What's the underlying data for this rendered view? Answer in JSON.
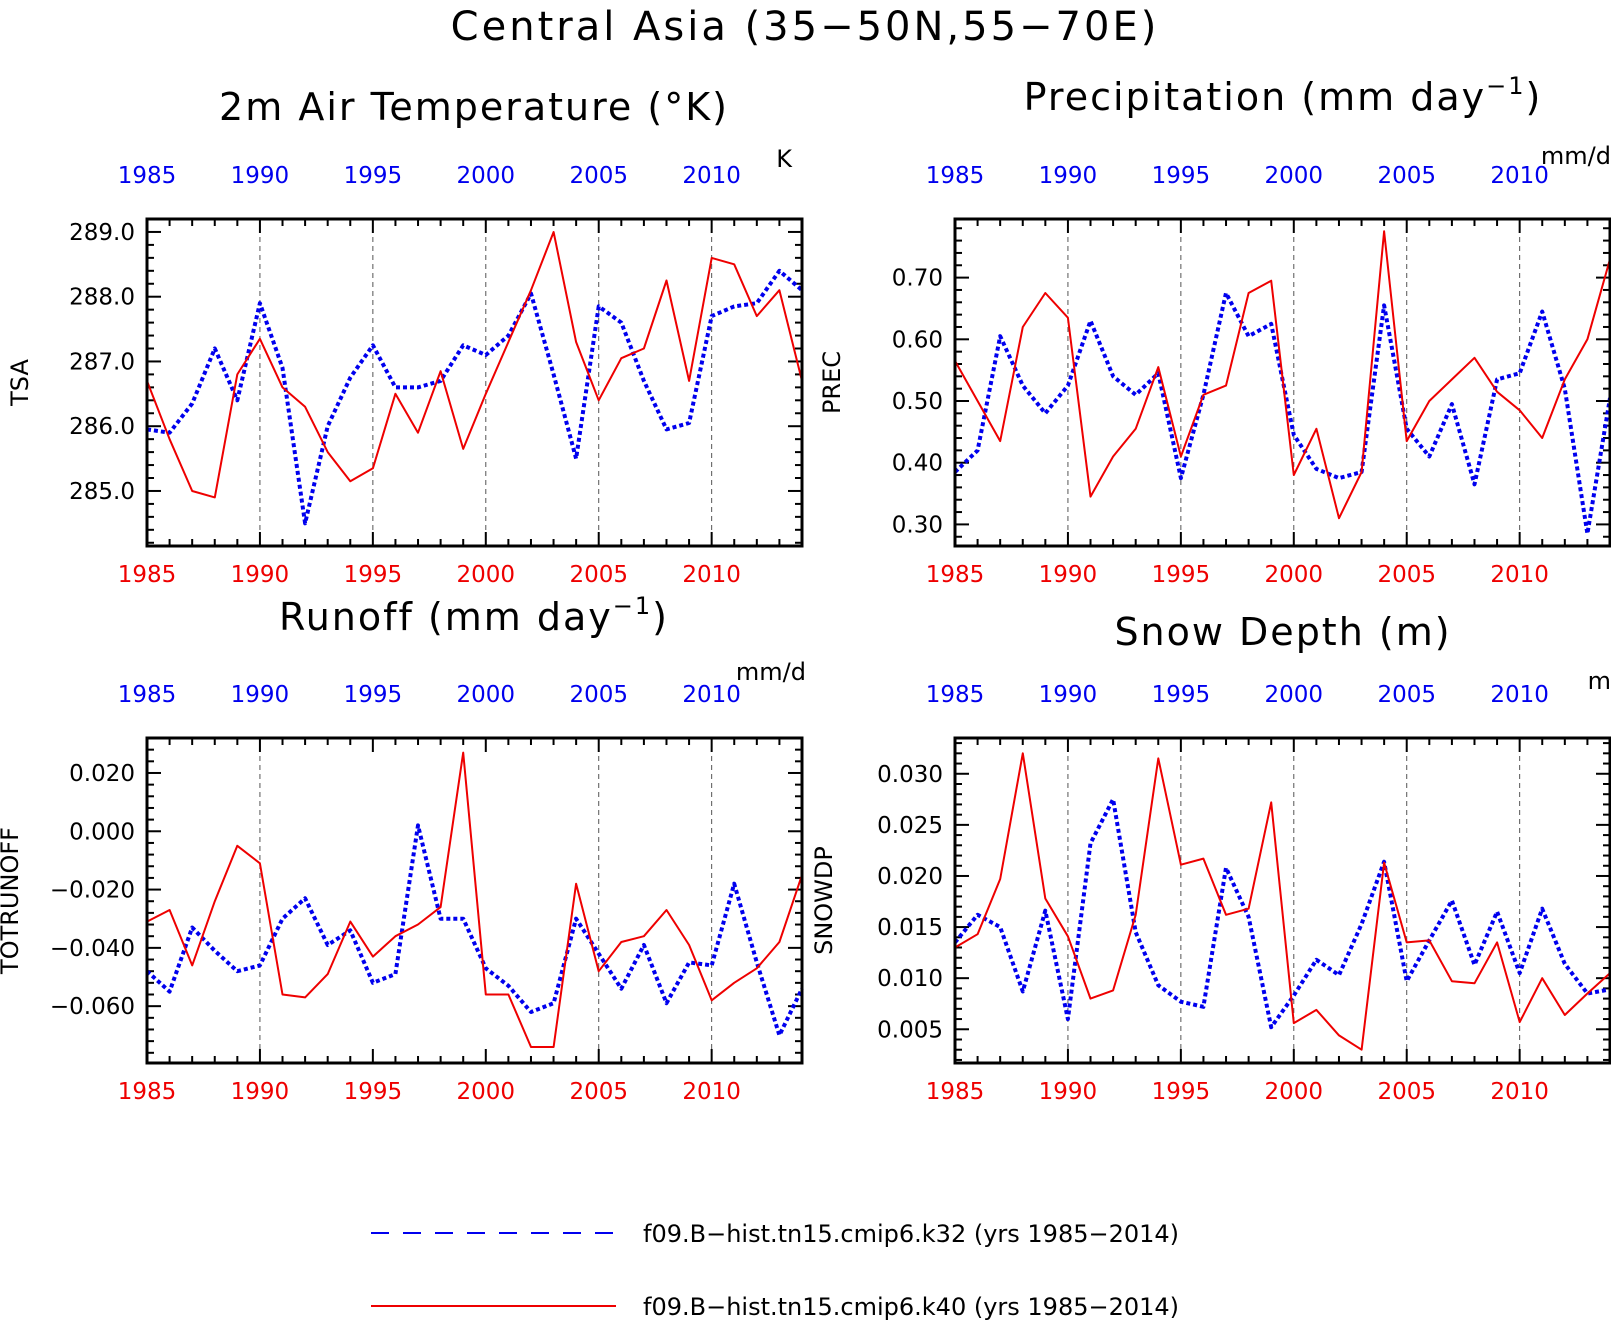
{
  "page_title": "Central Asia (35−50N,55−70E)",
  "colors": {
    "blue": "#0000ee",
    "red": "#ee0000",
    "black": "#000000",
    "grid": "#555555"
  },
  "legend": {
    "items": [
      {
        "label": "f09.B−hist.tn15.cmip6.k32 (yrs 1985−2014)",
        "color": "#0000ee",
        "style": "dashed"
      },
      {
        "label": "f09.B−hist.tn15.cmip6.k40 (yrs 1985−2014)",
        "color": "#ee0000",
        "style": "solid"
      }
    ]
  },
  "chart_data": [
    {
      "type": "line",
      "title": "2m Air Temperature (°K)",
      "ylabel": "TSA",
      "units": "K",
      "xlim": [
        1985,
        2014
      ],
      "ylim": [
        284.15,
        289.2
      ],
      "yticks": [
        285.0,
        286.0,
        287.0,
        288.0,
        289.0
      ],
      "yticklabels": [
        "285.0",
        "286.0",
        "287.0",
        "288.0",
        "289.0"
      ],
      "xticks": [
        1985,
        1990,
        1995,
        2000,
        2005,
        2010
      ],
      "grid_x": [
        1990,
        1995,
        2000,
        2005,
        2010
      ],
      "x": [
        1985,
        1986,
        1987,
        1988,
        1989,
        1990,
        1991,
        1992,
        1993,
        1994,
        1995,
        1996,
        1997,
        1998,
        1999,
        2000,
        2001,
        2002,
        2003,
        2004,
        2005,
        2006,
        2007,
        2008,
        2009,
        2010,
        2011,
        2012,
        2013,
        2014
      ],
      "series": [
        {
          "color": "#0000ee",
          "style": "dashed",
          "values": [
            285.95,
            285.9,
            286.35,
            287.2,
            286.4,
            287.9,
            286.9,
            284.5,
            286.0,
            286.75,
            287.25,
            286.6,
            286.6,
            286.7,
            287.25,
            287.1,
            287.4,
            288.05,
            286.8,
            285.5,
            287.85,
            287.6,
            286.7,
            285.95,
            286.05,
            287.7,
            287.85,
            287.9,
            288.4,
            288.1
          ]
        },
        {
          "color": "#ee0000",
          "style": "solid",
          "values": [
            286.7,
            285.8,
            285.0,
            284.9,
            286.8,
            287.35,
            286.6,
            286.3,
            285.6,
            285.15,
            285.35,
            286.5,
            285.9,
            286.85,
            285.65,
            286.5,
            287.3,
            288.1,
            289.0,
            287.3,
            286.4,
            287.05,
            287.2,
            288.25,
            286.7,
            288.6,
            288.5,
            287.7,
            288.1,
            286.7
          ]
        }
      ]
    },
    {
      "type": "line",
      "title": "Precipitation (mm day",
      "title_sup": "−1",
      "title_end": ")",
      "ylabel": "PREC",
      "units": "mm/d",
      "xlim": [
        1985,
        2014
      ],
      "ylim": [
        0.265,
        0.795
      ],
      "yticks": [
        0.3,
        0.4,
        0.5,
        0.6,
        0.7
      ],
      "yticklabels": [
        "0.30",
        "0.40",
        "0.50",
        "0.60",
        "0.70"
      ],
      "xticks": [
        1985,
        1990,
        1995,
        2000,
        2005,
        2010
      ],
      "grid_x": [
        1990,
        1995,
        2000,
        2005,
        2010
      ],
      "x": [
        1985,
        1986,
        1987,
        1988,
        1989,
        1990,
        1991,
        1992,
        1993,
        1994,
        1995,
        1996,
        1997,
        1998,
        1999,
        2000,
        2001,
        2002,
        2003,
        2004,
        2005,
        2006,
        2007,
        2008,
        2009,
        2010,
        2011,
        2012,
        2013,
        2014
      ],
      "series": [
        {
          "color": "#0000ee",
          "style": "dashed",
          "values": [
            0.385,
            0.42,
            0.605,
            0.525,
            0.48,
            0.525,
            0.63,
            0.54,
            0.51,
            0.545,
            0.375,
            0.51,
            0.675,
            0.605,
            0.625,
            0.445,
            0.39,
            0.375,
            0.385,
            0.655,
            0.455,
            0.41,
            0.495,
            0.365,
            0.535,
            0.545,
            0.645,
            0.52,
            0.285,
            0.505
          ]
        },
        {
          "color": "#ee0000",
          "style": "solid",
          "values": [
            0.565,
            0.5,
            0.435,
            0.62,
            0.675,
            0.635,
            0.345,
            0.41,
            0.455,
            0.555,
            0.41,
            0.51,
            0.525,
            0.675,
            0.695,
            0.38,
            0.455,
            0.31,
            0.385,
            0.775,
            0.435,
            0.5,
            0.535,
            0.57,
            0.515,
            0.485,
            0.44,
            0.535,
            0.6,
            0.73
          ]
        }
      ]
    },
    {
      "type": "line",
      "title": "Runoff (mm day",
      "title_sup": "−1",
      "title_end": ")",
      "ylabel": "TOTRUNOFF",
      "units": "mm/d",
      "xlim": [
        1985,
        2014
      ],
      "ylim": [
        -0.0795,
        0.032
      ],
      "yticks": [
        -0.06,
        -0.04,
        -0.02,
        0.0,
        0.02
      ],
      "yticklabels": [
        "−0.060",
        "−0.040",
        "−0.020",
        "0.000",
        "0.020"
      ],
      "xticks": [
        1985,
        1990,
        1995,
        2000,
        2005,
        2010
      ],
      "grid_x": [
        1990,
        2005,
        2010
      ],
      "x": [
        1985,
        1986,
        1987,
        1988,
        1989,
        1990,
        1991,
        1992,
        1993,
        1994,
        1995,
        1996,
        1997,
        1998,
        1999,
        2000,
        2001,
        2002,
        2003,
        2004,
        2005,
        2006,
        2007,
        2008,
        2009,
        2010,
        2011,
        2012,
        2013,
        2014
      ],
      "series": [
        {
          "color": "#0000ee",
          "style": "dashed",
          "values": [
            -0.048,
            -0.055,
            -0.033,
            -0.041,
            -0.048,
            -0.046,
            -0.03,
            -0.023,
            -0.039,
            -0.034,
            -0.052,
            -0.049,
            0.002,
            -0.03,
            -0.03,
            -0.047,
            -0.053,
            -0.062,
            -0.059,
            -0.03,
            -0.042,
            -0.054,
            -0.039,
            -0.059,
            -0.045,
            -0.046,
            -0.018,
            -0.045,
            -0.07,
            -0.054
          ]
        },
        {
          "color": "#ee0000",
          "style": "solid",
          "values": [
            -0.031,
            -0.027,
            -0.046,
            -0.024,
            -0.005,
            -0.011,
            -0.056,
            -0.057,
            -0.049,
            -0.031,
            -0.043,
            -0.036,
            -0.032,
            -0.026,
            0.027,
            -0.056,
            -0.056,
            -0.074,
            -0.074,
            -0.018,
            -0.048,
            -0.038,
            -0.036,
            -0.027,
            -0.039,
            -0.058,
            -0.052,
            -0.047,
            -0.038,
            -0.015
          ]
        }
      ]
    },
    {
      "type": "line",
      "title": "Snow Depth (m)",
      "ylabel": "SNOWDP",
      "units": "m",
      "xlim": [
        1985,
        2014
      ],
      "ylim": [
        0.0017,
        0.0335
      ],
      "yticks": [
        0.005,
        0.01,
        0.015,
        0.02,
        0.025,
        0.03
      ],
      "yticklabels": [
        "0.005",
        "0.010",
        "0.015",
        "0.020",
        "0.025",
        "0.030"
      ],
      "xticks": [
        1985,
        1990,
        1995,
        2000,
        2005,
        2010
      ],
      "grid_x": [
        1990,
        1995,
        2000,
        2005,
        2010
      ],
      "x": [
        1985,
        1986,
        1987,
        1988,
        1989,
        1990,
        1991,
        1992,
        1993,
        1994,
        1995,
        1996,
        1997,
        1998,
        1999,
        2000,
        2001,
        2002,
        2003,
        2004,
        2005,
        2006,
        2007,
        2008,
        2009,
        2010,
        2011,
        2012,
        2013,
        2014
      ],
      "series": [
        {
          "color": "#0000ee",
          "style": "dashed",
          "values": [
            0.0135,
            0.0162,
            0.015,
            0.0087,
            0.0166,
            0.006,
            0.0232,
            0.0275,
            0.0145,
            0.0093,
            0.0077,
            0.0072,
            0.0208,
            0.016,
            0.0052,
            0.0083,
            0.0118,
            0.0103,
            0.0153,
            0.0214,
            0.0097,
            0.0137,
            0.0176,
            0.0113,
            0.0165,
            0.0105,
            0.0168,
            0.0114,
            0.0085,
            0.0089
          ]
        },
        {
          "color": "#ee0000",
          "style": "solid",
          "values": [
            0.013,
            0.0143,
            0.0197,
            0.032,
            0.0178,
            0.0141,
            0.008,
            0.0088,
            0.0162,
            0.0315,
            0.0211,
            0.0217,
            0.0162,
            0.0168,
            0.0272,
            0.0056,
            0.0069,
            0.0044,
            0.003,
            0.0213,
            0.0135,
            0.0137,
            0.0097,
            0.0095,
            0.0135,
            0.0057,
            0.01,
            0.0064,
            0.0085,
            0.0105
          ]
        }
      ]
    }
  ]
}
